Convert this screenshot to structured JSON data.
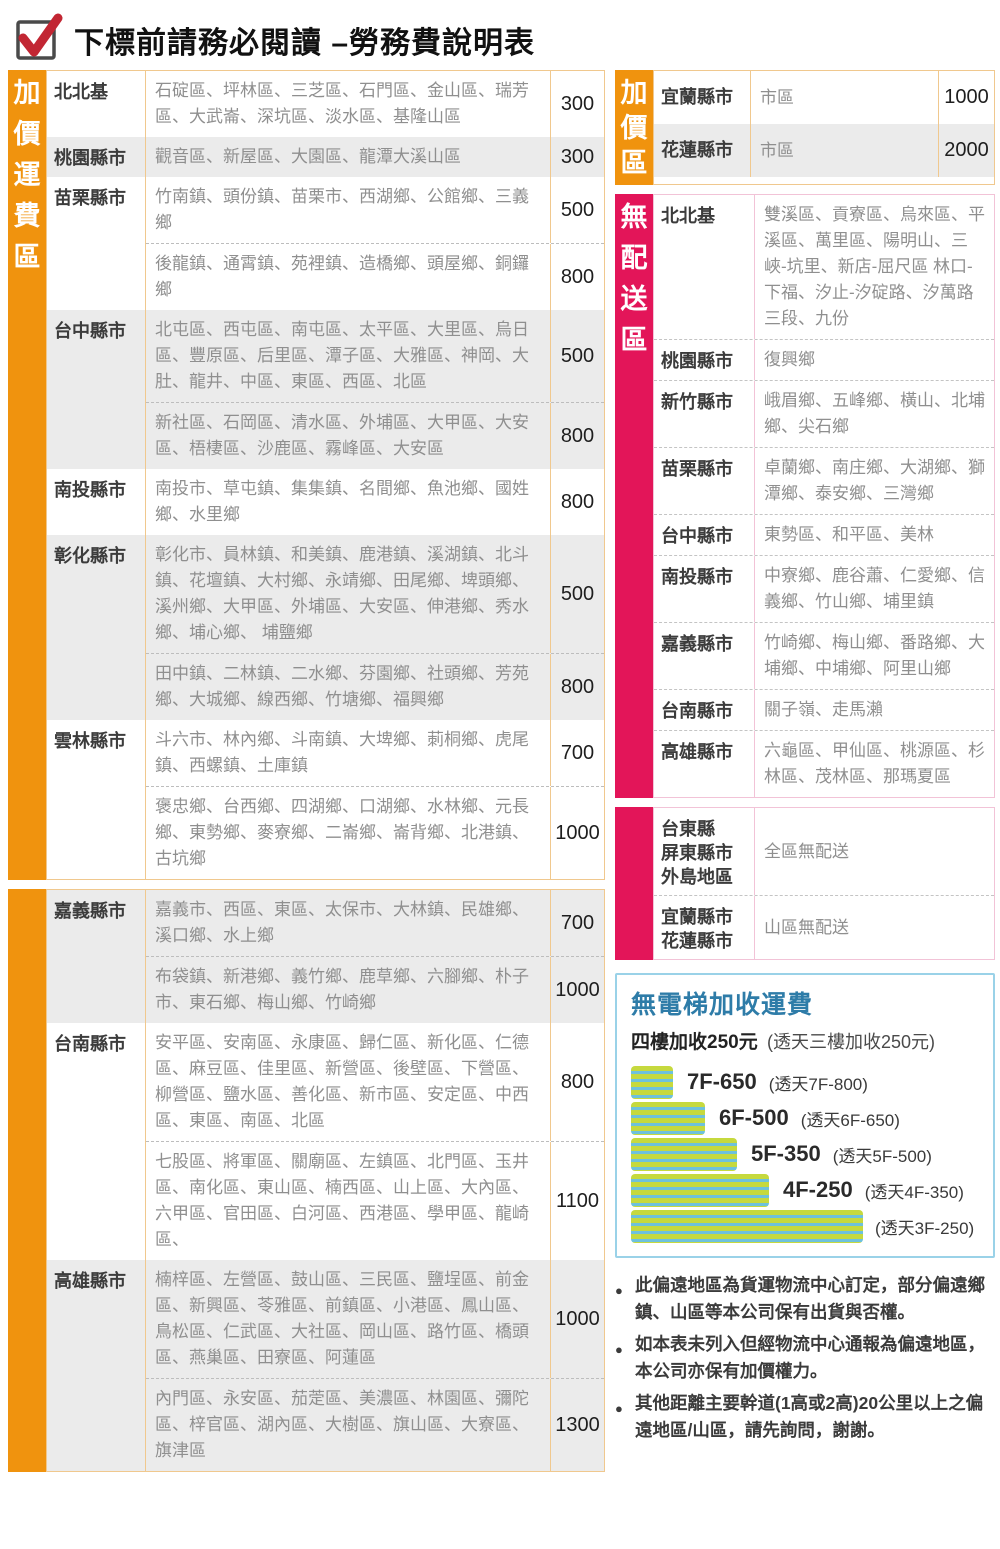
{
  "page": {
    "title": "下標前請務必閱讀 –勞務費說明表"
  },
  "colors": {
    "orange": "#F0930E",
    "pink": "#E31559",
    "row_alt": "#EBEBEB",
    "border_orange": "#F0C88E",
    "border_pink": "#F2C3D7",
    "check_red": "#C22633",
    "elevator_title_blue": "#2E7CA8",
    "elevator_box_border": "#9AD2E8",
    "stair_green": "#C6D93E",
    "stair_blue": "#6EC1DC"
  },
  "left_table": {
    "label": "加價運費區",
    "blocks": [
      {
        "rows": [
          {
            "region": "北北基",
            "entries": [
              {
                "areas": "石碇區、坪林區、三芝區、石門區、金山區、瑞芳區、大武崙、深坑區、淡水區、基隆山區",
                "price": "300"
              }
            ]
          },
          {
            "region": "桃園縣市",
            "entries": [
              {
                "areas": "觀音區、新屋區、大園區、龍潭大溪山區",
                "price": "300"
              }
            ]
          },
          {
            "region": "苗栗縣市",
            "entries": [
              {
                "areas": "竹南鎮、頭份鎮、苗栗市、西湖鄉、公館鄉、三義鄉",
                "price": "500"
              },
              {
                "areas": "後龍鎮、通霄鎮、苑裡鎮、造橋鄉、頭屋鄉、銅鑼鄉",
                "price": "800"
              }
            ]
          },
          {
            "region": "台中縣市",
            "entries": [
              {
                "areas": "北屯區、西屯區、南屯區、太平區、大里區、烏日區、豐原區、后里區、潭子區、大雅區、神岡、大肚、龍井、中區、東區、西區、北區",
                "price": "500"
              },
              {
                "areas": "新社區、石岡區、清水區、外埔區、大甲區、大安區、梧棲區、沙鹿區、霧峰區、大安區",
                "price": "800"
              }
            ]
          },
          {
            "region": "南投縣市",
            "entries": [
              {
                "areas": "南投市、草屯鎮、集集鎮、名間鄉、魚池鄉、國姓鄉、水里鄉",
                "price": "800"
              }
            ]
          },
          {
            "region": "彰化縣市",
            "entries": [
              {
                "areas": "彰化市、員林鎮、和美鎮、鹿港鎮、溪湖鎮、北斗鎮、花壇鎮、大村鄉、永靖鄉、田尾鄉、埤頭鄉、溪州鄉、大甲區、外埔區、大安區、伸港鄉、秀水鄉、埔心鄉、 埔鹽鄉",
                "price": "500"
              },
              {
                "areas": "田中鎮、二林鎮、二水鄉、芬園鄉、社頭鄉、芳苑鄉、大城鄉、線西鄉、竹塘鄉、福興鄉",
                "price": "800"
              }
            ]
          },
          {
            "region": "雲林縣市",
            "entries": [
              {
                "areas": "斗六市、林內鄉、斗南鎮、大埤鄉、莿桐鄉、虎尾鎮、西螺鎮、土庫鎮",
                "price": "700"
              },
              {
                "areas": "褒忠鄉、台西鄉、四湖鄉、口湖鄉、水林鄉、元長鄉、東勢鄉、麥寮鄉、二崙鄉、崙背鄉、北港鎮、古坑鄉",
                "price": "1000"
              }
            ]
          }
        ]
      },
      {
        "rows": [
          {
            "region": "嘉義縣市",
            "entries": [
              {
                "areas": "嘉義市、西區、東區、太保市、大林鎮、民雄鄉、溪口鄉、水上鄉",
                "price": "700"
              },
              {
                "areas": "布袋鎮、新港鄉、義竹鄉、鹿草鄉、六腳鄉、朴子市、東石鄉、梅山鄉、竹崎鄉",
                "price": "1000"
              }
            ]
          },
          {
            "region": "台南縣市",
            "entries": [
              {
                "areas": "安平區、安南區、永康區、歸仁區、新化區、仁德區、麻豆區、佳里區、新營區、後壁區、下營區、柳營區、鹽水區、善化區、新市區、安定區、中西區、東區、南區、北區",
                "price": "800"
              },
              {
                "areas": "七股區、將軍區、關廟區、左鎮區、北門區、玉井區、南化區、東山區、楠西區、山上區、大內區、六甲區、官田區、白河區、西港區、學甲區、龍崎區、",
                "price": "1100"
              }
            ]
          },
          {
            "region": "高雄縣市",
            "entries": [
              {
                "areas": "楠梓區、左營區、鼓山區、三民區、鹽埕區、前金區、新興區、苓雅區、前鎮區、小港區、鳳山區、鳥松區、仁武區、大社區、岡山區、路竹區、橋頭區、燕巢區、田寮區、阿蓮區",
                "price": "1000"
              },
              {
                "areas": "內門區、永安區、茄萣區、美濃區、林園區、彌陀區、梓官區、湖內區、大樹區、旗山區、大寮區、旗津區",
                "price": "1300"
              }
            ]
          }
        ]
      }
    ]
  },
  "surcharge_table": {
    "label": "加價區",
    "rows": [
      {
        "region": "宜蘭縣市",
        "areas": "市區",
        "price": "1000"
      },
      {
        "region": "花蓮縣市",
        "areas": "市區",
        "price": "2000"
      }
    ]
  },
  "no_delivery": {
    "label": "無配送區",
    "blocks": [
      {
        "rows": [
          {
            "region": "北北基",
            "areas": "雙溪區、貢寮區、烏來區、平溪區、萬里區、陽明山、三峽-坑里、新店-屈尺區 林口-下福、汐止-汐碇路、汐萬路三段、九份"
          },
          {
            "region": "桃園縣市",
            "areas": "復興鄉"
          },
          {
            "region": "新竹縣市",
            "areas": "峨眉鄉、五峰鄉、橫山、北埔鄉、尖石鄉"
          },
          {
            "region": "苗栗縣市",
            "areas": "卓蘭鄉、南庄鄉、大湖鄉、獅潭鄉、泰安鄉、三灣鄉"
          },
          {
            "region": "台中縣市",
            "areas": "東勢區、和平區、美林"
          },
          {
            "region": "南投縣市",
            "areas": "中寮鄉、鹿谷蕭、仁愛鄉、信義鄉、竹山鄉、埔里鎮"
          },
          {
            "region": "嘉義縣市",
            "areas": "竹崎鄉、梅山鄉、番路鄉、大埔鄉、中埔鄉、阿里山鄉"
          },
          {
            "region": "台南縣市",
            "areas": "關子嶺、走馬瀨"
          },
          {
            "region": "高雄縣市",
            "areas": "六龜區、甲仙區、桃源區、杉林區、茂林區、那瑪夏區"
          }
        ]
      },
      {
        "rows": [
          {
            "region": "台東縣\n屏東縣市\n外島地區",
            "areas": "全區無配送"
          },
          {
            "region": "宜蘭縣市\n花蓮縣市",
            "areas": "山區無配送"
          }
        ]
      }
    ]
  },
  "elevator": {
    "title": "無電梯加收運費",
    "subtitle": "四樓加收250元",
    "subtitle_note": "(透天三樓加收250元)",
    "steps": [
      {
        "label": "7F-650",
        "note": "(透天7F-800)"
      },
      {
        "label": "6F-500",
        "note": "(透天6F-650)"
      },
      {
        "label": "5F-350",
        "note": "(透天5F-500)"
      },
      {
        "label": "4F-250",
        "note": "(透天4F-350)"
      },
      {
        "label": "",
        "note": "(透天3F-250)"
      }
    ]
  },
  "notes": [
    "此偏遠地區為貨運物流中心訂定，部分偏遠鄉鎮、山區等本公司保有出貨與否權。",
    "如本表未列入但經物流中心通報為偏遠地區，本公司亦保有加價權力。",
    "其他距離主要幹道(1高或2高)20公里以上之偏遠地區/山區，請先詢問，謝謝。"
  ]
}
